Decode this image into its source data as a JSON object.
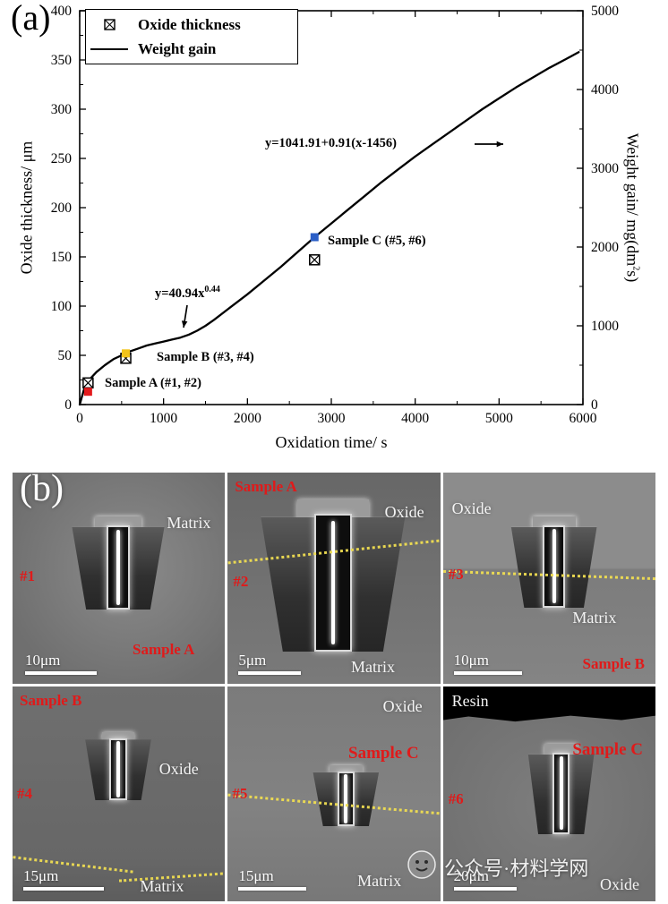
{
  "figure": {
    "panel_a_label": "(a)",
    "panel_b_label": "(b)"
  },
  "chart_data": {
    "type": "line",
    "xlabel": "Oxidation time/ s",
    "ylabel_left": "Oxide thickness/ μm",
    "ylabel_right": {
      "base": "Weight gain/ mg(dm",
      "sup": "2",
      "tail": "s)"
    },
    "xlim": [
      0,
      6000
    ],
    "ylim_left": [
      0,
      400
    ],
    "ylim_right": [
      0,
      5000
    ],
    "x_ticks": [
      0,
      1000,
      2000,
      3000,
      4000,
      5000,
      6000
    ],
    "y_ticks_left": [
      0,
      50,
      100,
      150,
      200,
      250,
      300,
      350,
      400
    ],
    "y_ticks_right": [
      0,
      1000,
      2000,
      3000,
      4000,
      5000
    ],
    "grid": false,
    "legend_position": "upper-left",
    "legend": [
      {
        "label": "Oxide thickness",
        "marker": "crossed-square"
      },
      {
        "label": "Weight gain",
        "marker": "line"
      }
    ],
    "series": [
      {
        "name": "Weight gain",
        "x": [
          0,
          50,
          100,
          200,
          300,
          400,
          500,
          600,
          700,
          800,
          900,
          1000,
          1100,
          1200,
          1300,
          1400,
          1500,
          1600,
          1800,
          2000,
          2200,
          2400,
          2600,
          2800,
          3000,
          3200,
          3400,
          3600,
          3800,
          4000,
          4200,
          4400,
          4600,
          4800,
          5000,
          5200,
          5400,
          5600,
          5800,
          5950
        ],
        "y_left": [
          0,
          15,
          24,
          33,
          40,
          46,
          50,
          54,
          57,
          60,
          62,
          64,
          66,
          68,
          71,
          75,
          80,
          86,
          99,
          112,
          126,
          140,
          155,
          170,
          184,
          198,
          212,
          226,
          239,
          252,
          264,
          276,
          288,
          300,
          311,
          322,
          332,
          342,
          351,
          358
        ]
      }
    ],
    "oxide_thickness_points": [
      {
        "x": 100,
        "y": 22
      },
      {
        "x": 550,
        "y": 47
      },
      {
        "x": 2800,
        "y": 147
      }
    ],
    "weight_gain_points": [
      {
        "x": 100,
        "y": 13,
        "color": "#e31a1c"
      },
      {
        "x": 550,
        "y": 52,
        "color": "#f2c31b"
      },
      {
        "x": 2800,
        "y": 170,
        "color": "#2b5fc7"
      }
    ],
    "annotations": {
      "eq_linear": {
        "text": "y=1041.91+0.91(x-1456)",
        "arrow": "right"
      },
      "eq_power": {
        "base": "y=40.94x",
        "sup": "0.44",
        "arrow": "down"
      },
      "sample_a": {
        "text": "Sample A (#1, #2)"
      },
      "sample_b": {
        "text": "Sample B (#3, #4)"
      },
      "sample_c": {
        "text": "Sample C (#5, #6)"
      }
    }
  },
  "micrographs": {
    "tile1": {
      "id": "#1",
      "matrix": "Matrix",
      "sample": "Sample A",
      "scale": "10μm"
    },
    "tile2": {
      "id": "#2",
      "sample": "Sample A",
      "oxide": "Oxide",
      "matrix": "Matrix",
      "scale": "5μm"
    },
    "tile3": {
      "id": "#3",
      "oxide": "Oxide",
      "matrix": "Matrix",
      "sample": "Sample B",
      "scale": "10μm"
    },
    "tile4": {
      "id": "#4",
      "sample": "Sample B",
      "oxide": "Oxide",
      "matrix": "Matrix",
      "scale": "15μm"
    },
    "tile5": {
      "id": "#5",
      "oxide": "Oxide",
      "sample": "Sample C",
      "matrix": "Matrix",
      "scale": "15μm"
    },
    "tile6": {
      "id": "#6",
      "resin": "Resin",
      "sample": "Sample C",
      "oxide": "Oxide",
      "scale": "20μm"
    }
  },
  "watermark": {
    "text": "公众号·材料学网"
  }
}
